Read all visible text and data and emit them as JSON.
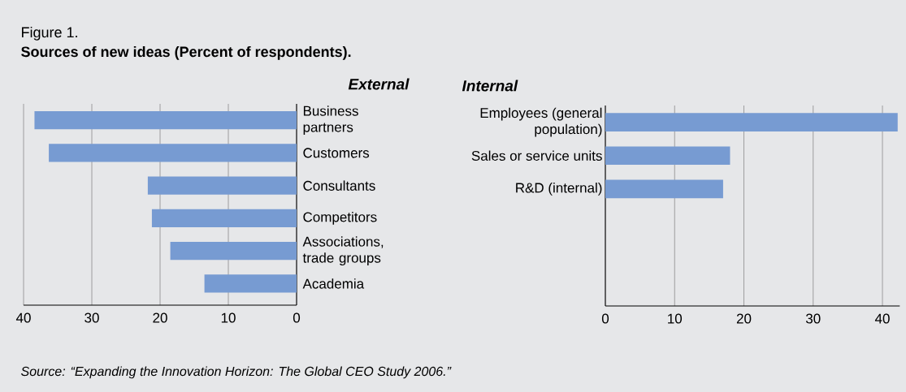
{
  "chart_data": [
    {
      "type": "bar",
      "orientation": "horizontal",
      "title": "External",
      "categories": [
        "Business partners",
        "Customers",
        "Consultants",
        "Competitors",
        "Associations, trade groups",
        "Academia"
      ],
      "values": [
        38.4,
        36.3,
        21.8,
        21.2,
        18.5,
        13.5
      ],
      "color": "#779bd2",
      "xlim": [
        40,
        0
      ],
      "xticks": [
        40,
        30,
        20,
        10,
        0
      ],
      "grid": "x",
      "annotations": [
        "Figure 1.",
        "Sources of new ideas (Percent of respondents)."
      ]
    },
    {
      "type": "bar",
      "orientation": "horizontal",
      "title": "Internal",
      "categories": [
        "Employees (general population)",
        "Sales or service units",
        "R&D (internal)",
        null,
        null,
        null
      ],
      "values": [
        42.2,
        18.0,
        17.0,
        null,
        null,
        null
      ],
      "color": "#779bd2",
      "xlim": [
        0,
        42.5
      ],
      "xticks": [
        0,
        10,
        20,
        30,
        40
      ],
      "grid": "x",
      "annotations": [
        "Source: “Expanding the Innovation Horizon: The Global CEO Study 2006.”"
      ]
    }
  ]
}
